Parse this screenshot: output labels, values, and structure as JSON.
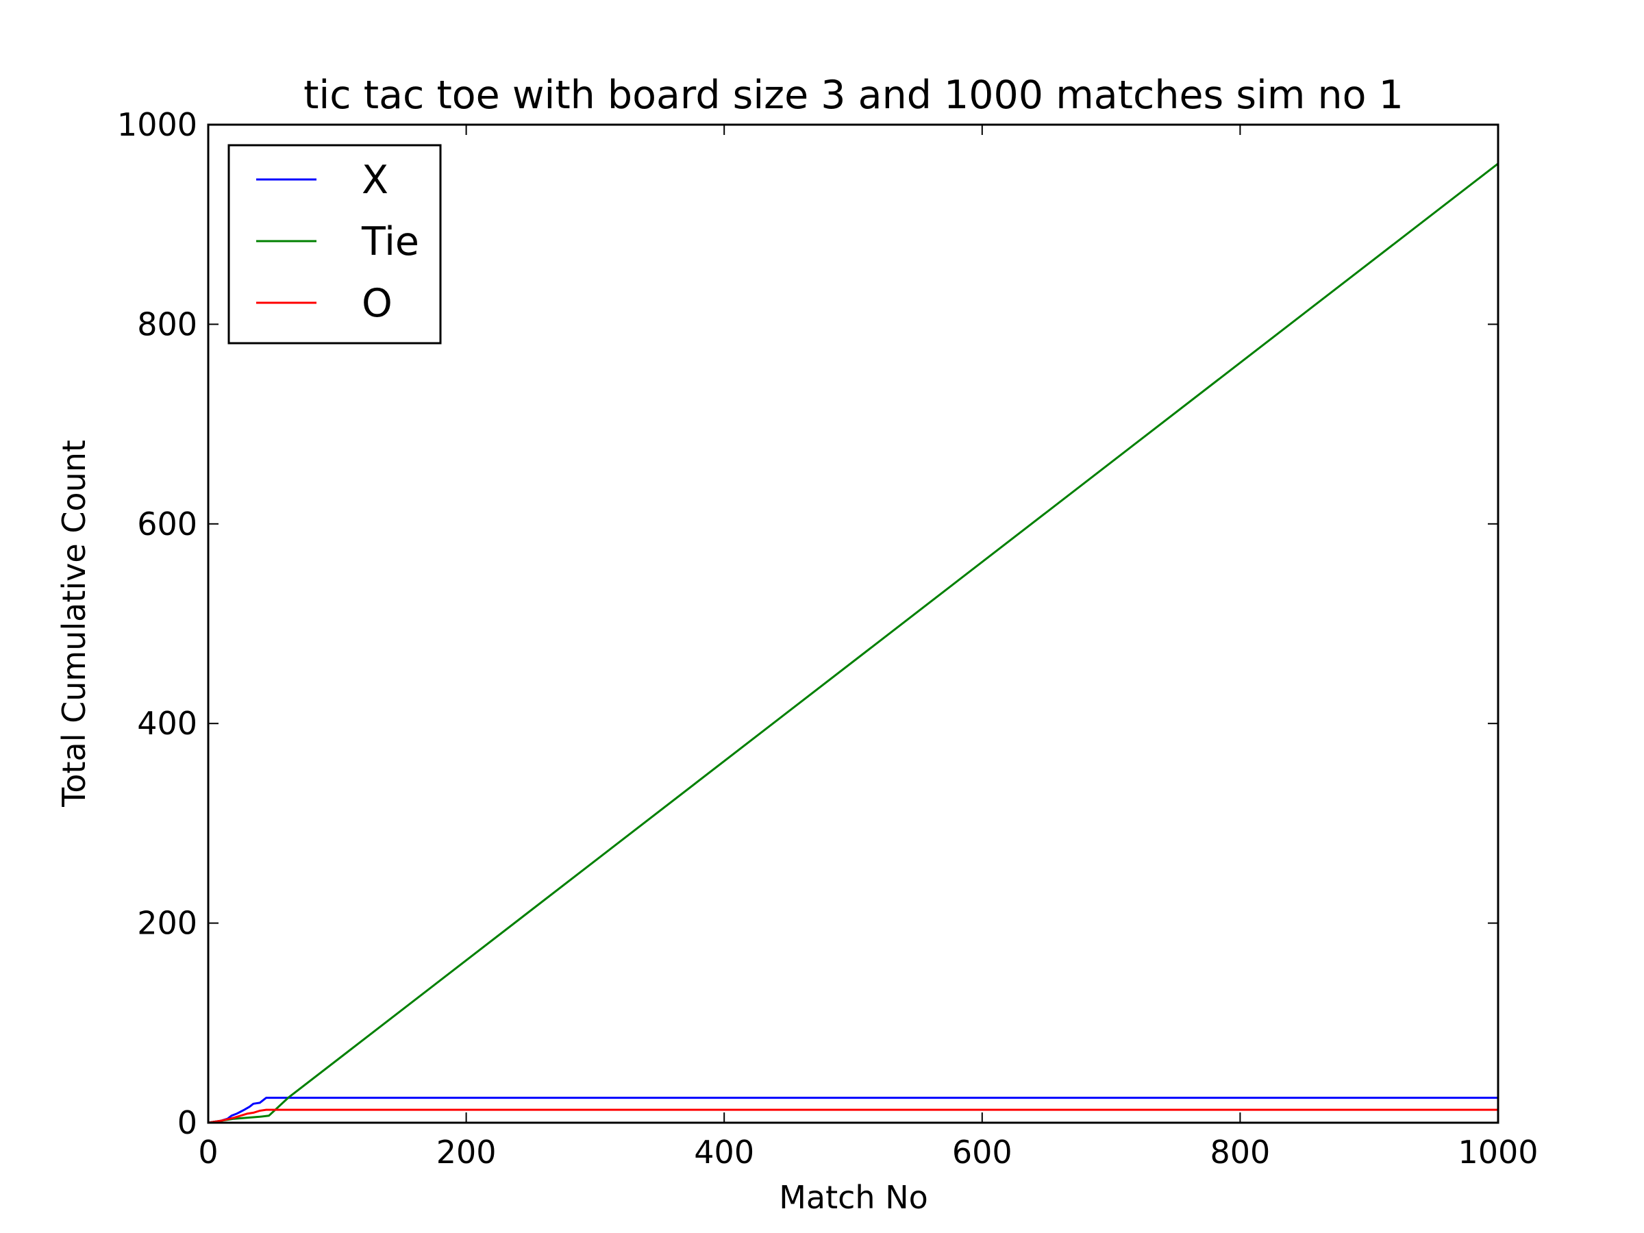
{
  "chart_data": {
    "type": "line",
    "title": "tic tac toe with board size 3 and 1000 matches sim no 1",
    "xlabel": "Match No",
    "ylabel": "Total Cumulative Count",
    "xlim": [
      0,
      1000
    ],
    "ylim": [
      0,
      1000
    ],
    "xticks": [
      0,
      200,
      400,
      600,
      800,
      1000
    ],
    "xtick_labels": [
      "0",
      "200",
      "400",
      "600",
      "800",
      "1000"
    ],
    "yticks": [
      0,
      200,
      400,
      600,
      800,
      1000
    ],
    "ytick_labels": [
      "0",
      "200",
      "400",
      "600",
      "800",
      "1000"
    ],
    "grid": false,
    "legend_position": "top-left",
    "series": [
      {
        "name": "X",
        "color": "#0000ff",
        "x": [
          0,
          5,
          10,
          15,
          18,
          22,
          25,
          28,
          32,
          35,
          40,
          42,
          45,
          1000
        ],
        "y": [
          0,
          1,
          2,
          4,
          7,
          9,
          11,
          13,
          16,
          19,
          20,
          22,
          25,
          25
        ]
      },
      {
        "name": "Tie",
        "color": "#008000",
        "x": [
          0,
          10,
          20,
          30,
          40,
          47,
          62,
          1000
        ],
        "y": [
          0,
          2,
          4,
          5,
          6,
          7,
          25,
          961
        ]
      },
      {
        "name": "O",
        "color": "#ff0000",
        "x": [
          0,
          10,
          20,
          25,
          30,
          35,
          40,
          45,
          1000
        ],
        "y": [
          0,
          2,
          5,
          7,
          9,
          10,
          12,
          13,
          13
        ]
      }
    ]
  }
}
